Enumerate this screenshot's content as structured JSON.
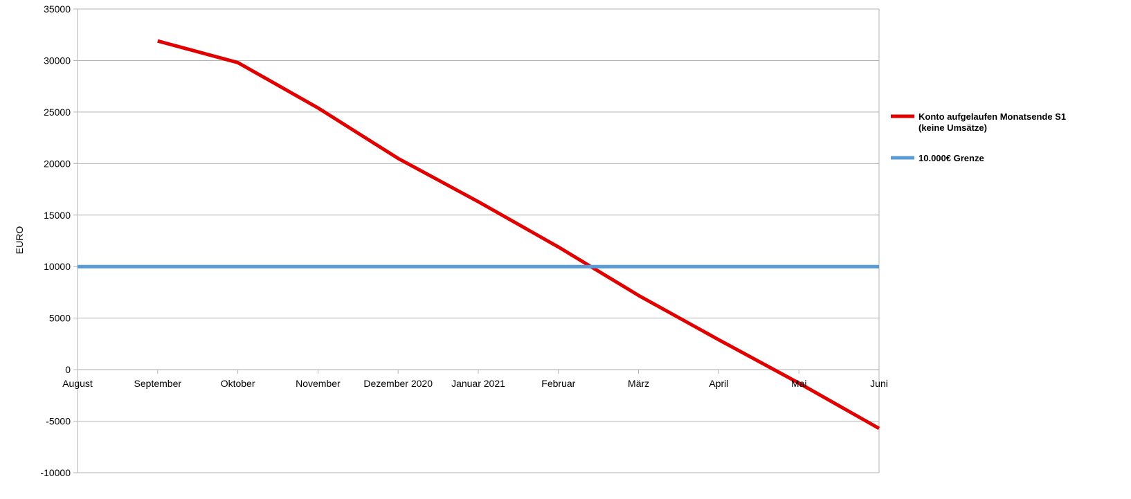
{
  "chart_data": {
    "type": "line",
    "title": "",
    "xlabel": "",
    "ylabel": "EURO",
    "categories": [
      "August",
      "September",
      "Oktober",
      "November",
      "Dezember 2020",
      "Januar 2021",
      "Februar",
      "März",
      "April",
      "Mai",
      "Juni"
    ],
    "ylim": [
      -10000,
      35000
    ],
    "yticks": [
      -10000,
      -5000,
      0,
      5000,
      10000,
      15000,
      20000,
      25000,
      30000,
      35000
    ],
    "grid": true,
    "legend_position": "right",
    "series": [
      {
        "name": "Konto aufgelaufen Monatsende S1 (keine Umsätze)",
        "legend_lines": [
          "Konto aufgelaufen Monatsende S1",
          "(keine Umsätze)"
        ],
        "color": "#e00000",
        "values": [
          null,
          31900,
          29800,
          25400,
          20500,
          16300,
          11900,
          7200,
          2900,
          -1300,
          -5700
        ]
      },
      {
        "name": "10.000€ Grenze",
        "legend_lines": [
          "10.000€ Grenze"
        ],
        "color": "#5b9bd5",
        "values": [
          10000,
          10000,
          10000,
          10000,
          10000,
          10000,
          10000,
          10000,
          10000,
          10000,
          10000
        ]
      }
    ]
  }
}
